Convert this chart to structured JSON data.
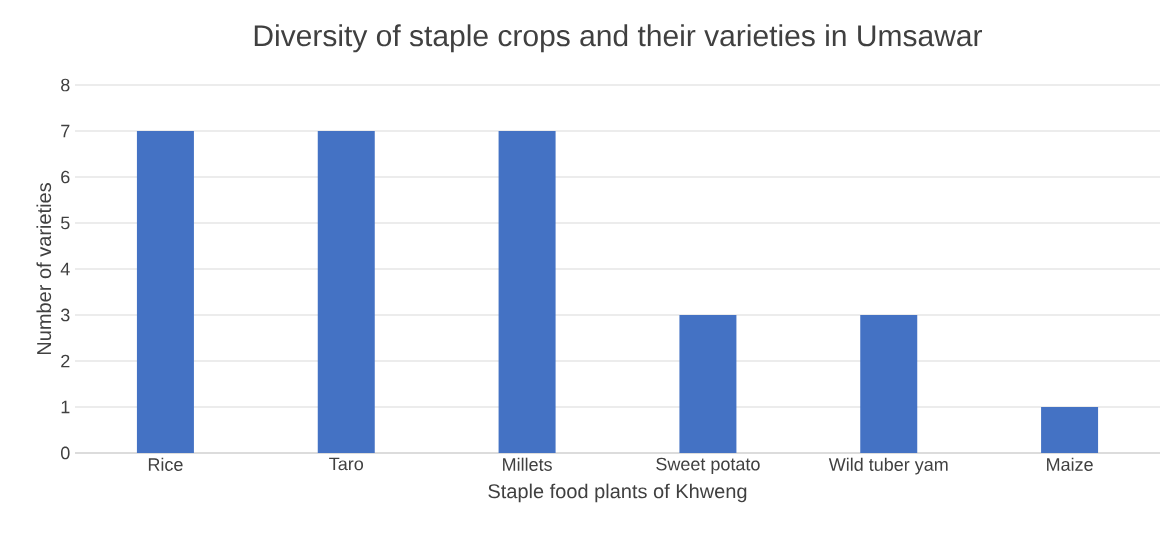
{
  "chart_data": {
    "type": "bar",
    "title": "Diversity of staple crops and their varieties in Umsawar",
    "xlabel": "Staple food plants of Khweng",
    "ylabel": "Number of varieties",
    "categories": [
      "Rice",
      "Taro",
      "Millets",
      "Sweet potato",
      "Wild tuber yam",
      "Maize"
    ],
    "values": [
      7,
      7,
      7,
      3,
      3,
      1
    ],
    "color": "#4472c4",
    "ylim": [
      0,
      8
    ],
    "yticks": [
      0,
      1,
      2,
      3,
      4,
      5,
      6,
      7,
      8
    ],
    "grid": "y"
  }
}
